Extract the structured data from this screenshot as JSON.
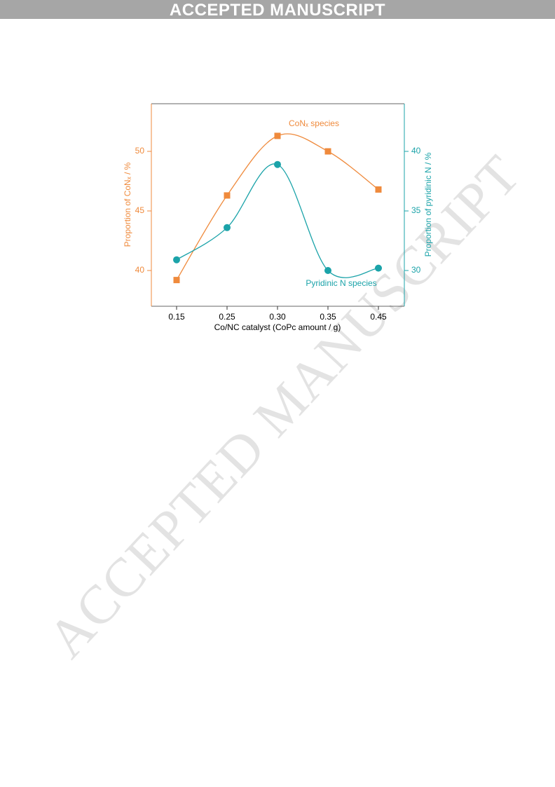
{
  "header": {
    "banner": "ACCEPTED MANUSCRIPT"
  },
  "watermark": "ACCEPTED MANUSCRIPT",
  "chart_data": {
    "type": "line",
    "x_label": "Co/NC catalyst (CoPc amount / g)",
    "y_label": "Proportion of CoNₓ / %",
    "y2_label": "Proportion of pyridinic N / %",
    "categories": [
      "0.15",
      "0.25",
      "0.30",
      "0.35",
      "0.45"
    ],
    "series": [
      {
        "name": "CoNₓ species",
        "color": "#ef8a3c",
        "marker": "square",
        "values": [
          39.2,
          46.3,
          51.3,
          50.0,
          46.8
        ]
      },
      {
        "name": "Pyridinic N species",
        "color": "#1ba3a9",
        "marker": "circle",
        "axis": "y2",
        "values": [
          30.9,
          33.6,
          38.9,
          30.0,
          30.2
        ]
      }
    ],
    "ylim": [
      37,
      54
    ],
    "yticks": [
      40,
      45,
      50
    ],
    "y2lim": [
      27,
      44
    ],
    "y2ticks": [
      30,
      35,
      40
    ],
    "smooth": true
  }
}
